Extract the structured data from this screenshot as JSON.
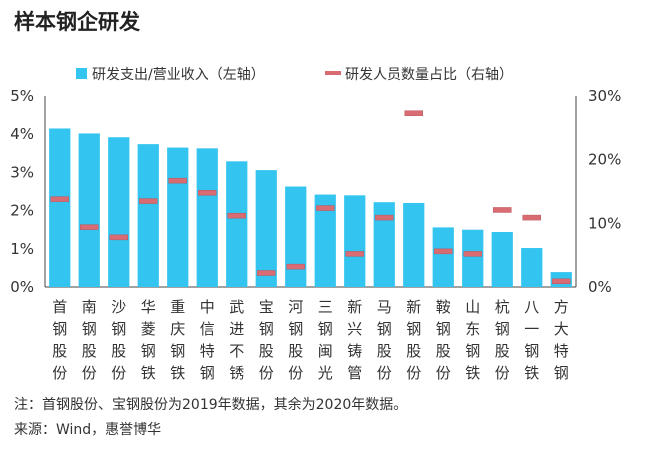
{
  "title": "样本钢企研发",
  "legend": {
    "bar_label": "研发支出/营业收入（左轴）",
    "marker_label": "研发人员数量占比（右轴）"
  },
  "notes": {
    "note": "注：首钢股份、宝钢股份为2019年数据，其余为2020年数据。",
    "source": "来源：Wind，惠誉博华"
  },
  "colors": {
    "bar": "#33C4F0",
    "marker": "#D96B72",
    "text": "#333333"
  },
  "chart_data": {
    "type": "bar",
    "categories": [
      "首钢股份",
      "南钢股份",
      "沙钢股份",
      "华菱钢铁",
      "重庆钢铁",
      "中信特钢",
      "武进不锈",
      "宝钢股份",
      "河钢股份",
      "三钢闽光",
      "新兴铸管",
      "马钢股份",
      "新钢股份",
      "鞍钢股份",
      "山东钢铁",
      "杭钢股份",
      "八一钢铁",
      "方大特钢"
    ],
    "series": [
      {
        "name": "研发支出/营业收入（左轴）",
        "type": "bar",
        "axis": "left",
        "values": [
          4.15,
          4.02,
          3.92,
          3.74,
          3.65,
          3.63,
          3.29,
          3.06,
          2.63,
          2.42,
          2.4,
          2.22,
          2.2,
          1.56,
          1.5,
          1.44,
          1.02,
          0.39
        ]
      },
      {
        "name": "研发人员数量占比（右轴）",
        "type": "marker",
        "axis": "right",
        "values": [
          13.8,
          9.4,
          7.8,
          13.5,
          16.7,
          14.8,
          11.2,
          2.2,
          3.2,
          12.4,
          5.2,
          10.9,
          27.3,
          5.6,
          5.2,
          12.1,
          10.9,
          0.9
        ]
      }
    ],
    "left_axis": {
      "min": 0,
      "max": 5,
      "ticks": [
        "0%",
        "1%",
        "2%",
        "3%",
        "4%",
        "5%"
      ]
    },
    "right_axis": {
      "min": 0,
      "max": 30,
      "ticks": [
        "0%",
        "10%",
        "20%",
        "30%"
      ]
    },
    "grid": false,
    "legend_position": "top"
  }
}
